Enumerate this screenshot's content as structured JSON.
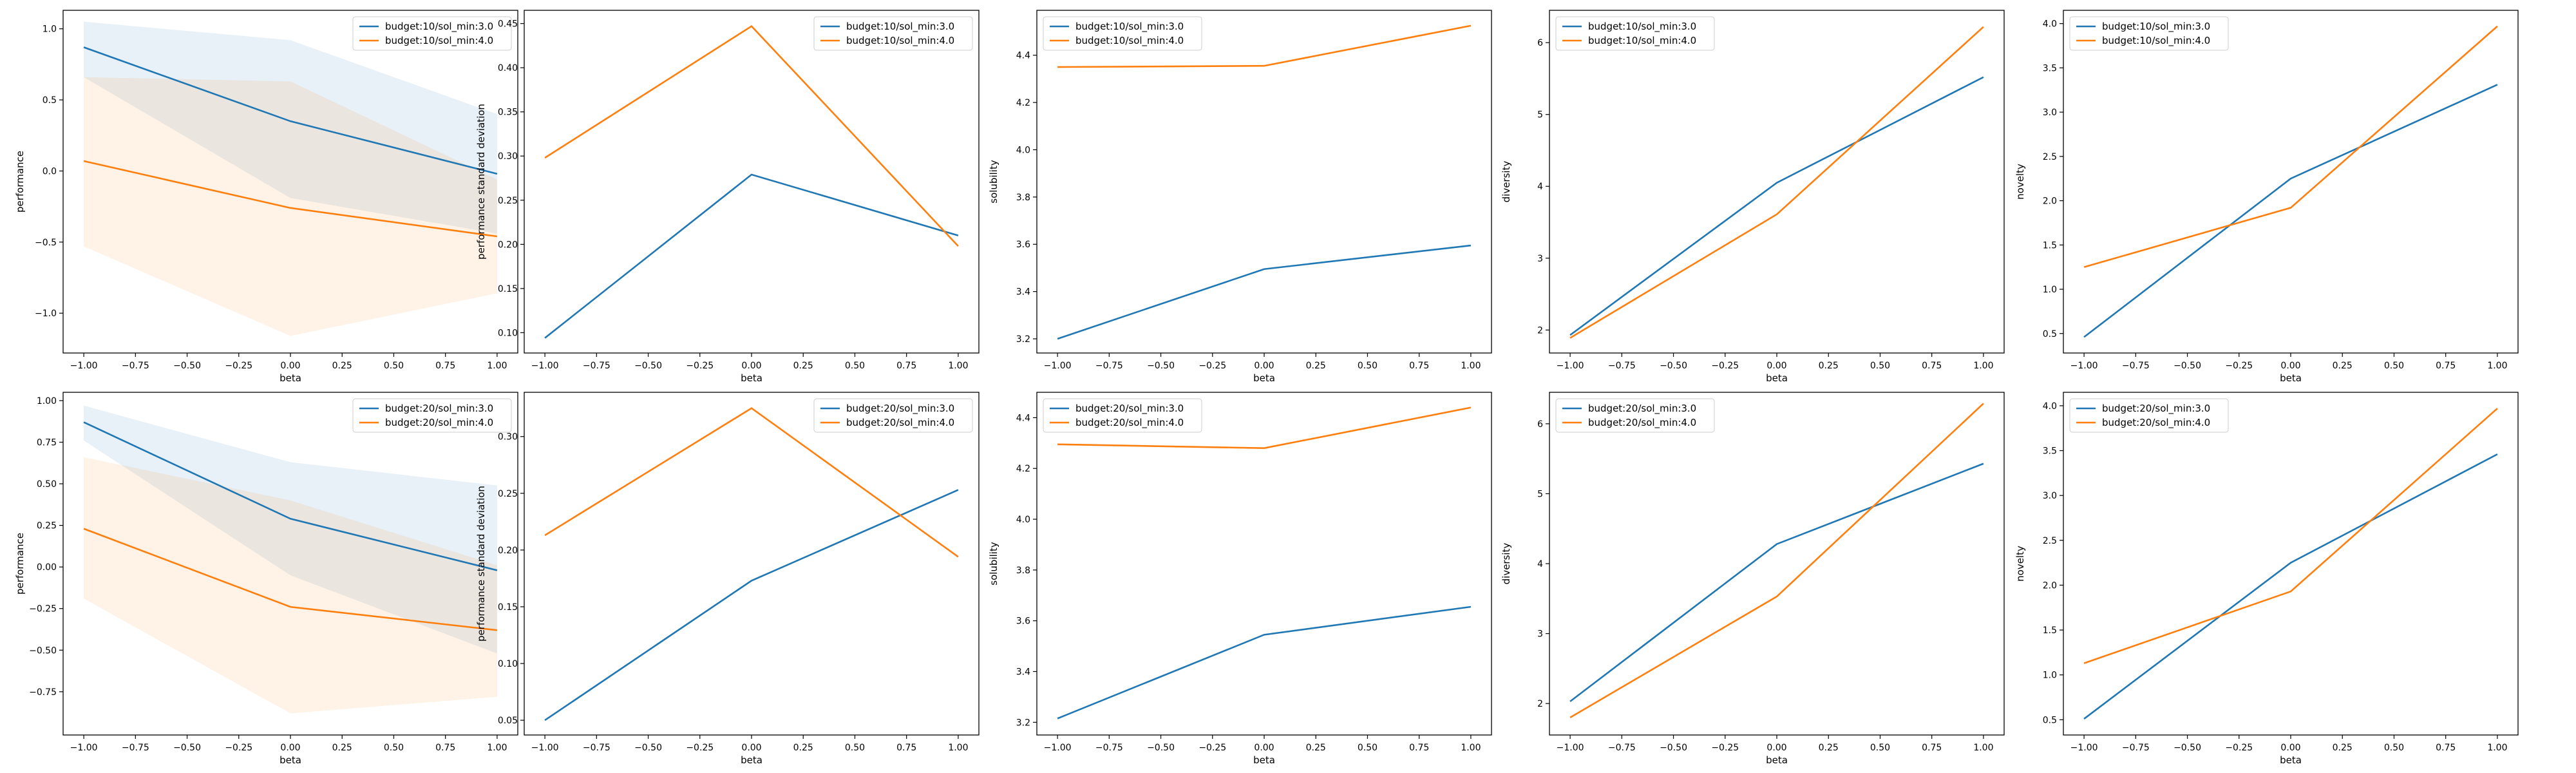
{
  "chart_data": [
    {
      "type": "line",
      "xlabel": "beta",
      "ylabel": "performance",
      "x": [
        -1.0,
        0.0,
        1.0
      ],
      "xticks": [
        "−1.00",
        "−0.75",
        "−0.50",
        "−0.25",
        "0.00",
        "0.25",
        "0.50",
        "0.75",
        "1.00"
      ],
      "xtick_values": [
        -1.0,
        -0.75,
        -0.5,
        -0.25,
        0.0,
        0.25,
        0.5,
        0.75,
        1.0
      ],
      "yticks": [
        "−1.0",
        "−0.5",
        "0.0",
        "0.5",
        "1.0"
      ],
      "ytick_values": [
        -1.0,
        -0.5,
        0.0,
        0.5,
        1.0
      ],
      "ylim": [
        -1.28,
        1.13
      ],
      "legend": "top-right",
      "series": [
        {
          "name": "budget:10/sol_min:3.0",
          "color": "#1f77b4",
          "values": [
            0.87,
            0.35,
            -0.02
          ],
          "band_low": [
            0.66,
            -0.19,
            -0.44
          ],
          "band_high": [
            1.05,
            0.92,
            0.4
          ]
        },
        {
          "name": "budget:10/sol_min:4.0",
          "color": "#ff7f0e",
          "values": [
            0.07,
            -0.26,
            -0.46
          ],
          "band_low": [
            -0.53,
            -1.16,
            -0.86
          ],
          "band_high": [
            0.66,
            0.63,
            -0.06
          ]
        }
      ]
    },
    {
      "type": "line",
      "xlabel": "beta",
      "ylabel": "performance standard deviation",
      "x": [
        -1.0,
        0.0,
        1.0
      ],
      "xticks": [
        "−1.00",
        "−0.75",
        "−0.50",
        "−0.25",
        "0.00",
        "0.25",
        "0.50",
        "0.75",
        "1.00"
      ],
      "xtick_values": [
        -1.0,
        -0.75,
        -0.5,
        -0.25,
        0.0,
        0.25,
        0.5,
        0.75,
        1.0
      ],
      "yticks": [
        "0.10",
        "0.15",
        "0.20",
        "0.25",
        "0.30",
        "0.35",
        "0.40",
        "0.45"
      ],
      "ytick_values": [
        0.1,
        0.15,
        0.2,
        0.25,
        0.3,
        0.35,
        0.4,
        0.45
      ],
      "ylim": [
        0.077,
        0.465
      ],
      "legend": "top-right",
      "series": [
        {
          "name": "budget:10/sol_min:3.0",
          "color": "#1f77b4",
          "values": [
            0.094,
            0.279,
            0.21
          ]
        },
        {
          "name": "budget:10/sol_min:4.0",
          "color": "#ff7f0e",
          "values": [
            0.298,
            0.447,
            0.198
          ]
        }
      ]
    },
    {
      "type": "line",
      "xlabel": "beta",
      "ylabel": "solubility",
      "x": [
        -1.0,
        0.0,
        1.0
      ],
      "xticks": [
        "−1.00",
        "−0.75",
        "−0.50",
        "−0.25",
        "0.00",
        "0.25",
        "0.50",
        "0.75",
        "1.00"
      ],
      "xtick_values": [
        -1.0,
        -0.75,
        -0.5,
        -0.25,
        0.0,
        0.25,
        0.5,
        0.75,
        1.0
      ],
      "yticks": [
        "3.2",
        "3.4",
        "3.6",
        "3.8",
        "4.0",
        "4.2",
        "4.4"
      ],
      "ytick_values": [
        3.2,
        3.4,
        3.6,
        3.8,
        4.0,
        4.2,
        4.4
      ],
      "ylim": [
        3.14,
        4.59
      ],
      "legend": "top-left",
      "series": [
        {
          "name": "budget:10/sol_min:3.0",
          "color": "#1f77b4",
          "values": [
            3.2,
            3.495,
            3.595
          ]
        },
        {
          "name": "budget:10/sol_min:4.0",
          "color": "#ff7f0e",
          "values": [
            4.35,
            4.355,
            4.525
          ]
        }
      ]
    },
    {
      "type": "line",
      "xlabel": "beta",
      "ylabel": "diversity",
      "x": [
        -1.0,
        0.0,
        1.0
      ],
      "xticks": [
        "−1.00",
        "−0.75",
        "−0.50",
        "−0.25",
        "0.00",
        "0.25",
        "0.50",
        "0.75",
        "1.00"
      ],
      "xtick_values": [
        -1.0,
        -0.75,
        -0.5,
        -0.25,
        0.0,
        0.25,
        0.5,
        0.75,
        1.0
      ],
      "yticks": [
        "2",
        "3",
        "4",
        "5",
        "6"
      ],
      "ytick_values": [
        2,
        3,
        4,
        5,
        6
      ],
      "ylim": [
        1.68,
        6.45
      ],
      "legend": "top-left",
      "series": [
        {
          "name": "budget:10/sol_min:3.0",
          "color": "#1f77b4",
          "values": [
            1.93,
            4.05,
            5.52
          ]
        },
        {
          "name": "budget:10/sol_min:4.0",
          "color": "#ff7f0e",
          "values": [
            1.89,
            3.61,
            6.22
          ]
        }
      ]
    },
    {
      "type": "line",
      "xlabel": "beta",
      "ylabel": "novelty",
      "x": [
        -1.0,
        0.0,
        1.0
      ],
      "xticks": [
        "−1.00",
        "−0.75",
        "−0.50",
        "−0.25",
        "0.00",
        "0.25",
        "0.50",
        "0.75",
        "1.00"
      ],
      "xtick_values": [
        -1.0,
        -0.75,
        -0.5,
        -0.25,
        0.0,
        0.25,
        0.5,
        0.75,
        1.0
      ],
      "yticks": [
        "0.5",
        "1.0",
        "1.5",
        "2.0",
        "2.5",
        "3.0",
        "3.5",
        "4.0"
      ],
      "ytick_values": [
        0.5,
        1.0,
        1.5,
        2.0,
        2.5,
        3.0,
        3.5,
        4.0
      ],
      "ylim": [
        0.28,
        4.15
      ],
      "legend": "top-left",
      "series": [
        {
          "name": "budget:10/sol_min:3.0",
          "color": "#1f77b4",
          "values": [
            0.46,
            2.25,
            3.31
          ]
        },
        {
          "name": "budget:10/sol_min:4.0",
          "color": "#ff7f0e",
          "values": [
            1.25,
            1.92,
            3.97
          ]
        }
      ]
    },
    {
      "type": "line",
      "xlabel": "beta",
      "ylabel": "performance",
      "x": [
        -1.0,
        0.0,
        1.0
      ],
      "xticks": [
        "−1.00",
        "−0.75",
        "−0.50",
        "−0.25",
        "0.00",
        "0.25",
        "0.50",
        "0.75",
        "1.00"
      ],
      "xtick_values": [
        -1.0,
        -0.75,
        -0.5,
        -0.25,
        0.0,
        0.25,
        0.5,
        0.75,
        1.0
      ],
      "yticks": [
        "−0.75",
        "−0.50",
        "−0.25",
        "0.00",
        "0.25",
        "0.50",
        "0.75",
        "1.00"
      ],
      "ytick_values": [
        -0.75,
        -0.5,
        -0.25,
        0.0,
        0.25,
        0.5,
        0.75,
        1.0
      ],
      "ylim": [
        -1.01,
        1.05
      ],
      "legend": "top-right",
      "series": [
        {
          "name": "budget:20/sol_min:3.0",
          "color": "#1f77b4",
          "values": [
            0.87,
            0.29,
            -0.02
          ],
          "band_low": [
            0.76,
            -0.05,
            -0.52
          ],
          "band_high": [
            0.97,
            0.63,
            0.49
          ]
        },
        {
          "name": "budget:20/sol_min:4.0",
          "color": "#ff7f0e",
          "values": [
            0.23,
            -0.24,
            -0.38
          ],
          "band_low": [
            -0.19,
            -0.88,
            -0.78
          ],
          "band_high": [
            0.66,
            0.4,
            0.01
          ]
        }
      ]
    },
    {
      "type": "line",
      "xlabel": "beta",
      "ylabel": "performance standard deviation",
      "x": [
        -1.0,
        0.0,
        1.0
      ],
      "xticks": [
        "−1.00",
        "−0.75",
        "−0.50",
        "−0.25",
        "0.00",
        "0.25",
        "0.50",
        "0.75",
        "1.00"
      ],
      "xtick_values": [
        -1.0,
        -0.75,
        -0.5,
        -0.25,
        0.0,
        0.25,
        0.5,
        0.75,
        1.0
      ],
      "yticks": [
        "0.05",
        "0.10",
        "0.15",
        "0.20",
        "0.25",
        "0.30"
      ],
      "ytick_values": [
        0.05,
        0.1,
        0.15,
        0.2,
        0.25,
        0.3
      ],
      "ylim": [
        0.037,
        0.339
      ],
      "legend": "top-right",
      "series": [
        {
          "name": "budget:20/sol_min:3.0",
          "color": "#1f77b4",
          "values": [
            0.05,
            0.173,
            0.253
          ]
        },
        {
          "name": "budget:20/sol_min:4.0",
          "color": "#ff7f0e",
          "values": [
            0.213,
            0.325,
            0.194
          ]
        }
      ]
    },
    {
      "type": "line",
      "xlabel": "beta",
      "ylabel": "solubility",
      "x": [
        -1.0,
        0.0,
        1.0
      ],
      "xticks": [
        "−1.00",
        "−0.75",
        "−0.50",
        "−0.25",
        "0.00",
        "0.25",
        "0.50",
        "0.75",
        "1.00"
      ],
      "xtick_values": [
        -1.0,
        -0.75,
        -0.5,
        -0.25,
        0.0,
        0.25,
        0.5,
        0.75,
        1.0
      ],
      "yticks": [
        "3.2",
        "3.4",
        "3.6",
        "3.8",
        "4.0",
        "4.2",
        "4.4"
      ],
      "ytick_values": [
        3.2,
        3.4,
        3.6,
        3.8,
        4.0,
        4.2,
        4.4
      ],
      "ylim": [
        3.15,
        4.5
      ],
      "legend": "top-left",
      "series": [
        {
          "name": "budget:20/sol_min:3.0",
          "color": "#1f77b4",
          "values": [
            3.215,
            3.545,
            3.655
          ]
        },
        {
          "name": "budget:20/sol_min:4.0",
          "color": "#ff7f0e",
          "values": [
            4.295,
            4.28,
            4.44
          ]
        }
      ]
    },
    {
      "type": "line",
      "xlabel": "beta",
      "ylabel": "diversity",
      "x": [
        -1.0,
        0.0,
        1.0
      ],
      "xticks": [
        "−1.00",
        "−0.75",
        "−0.50",
        "−0.25",
        "0.00",
        "0.25",
        "0.50",
        "0.75",
        "1.00"
      ],
      "xtick_values": [
        -1.0,
        -0.75,
        -0.5,
        -0.25,
        0.0,
        0.25,
        0.5,
        0.75,
        1.0
      ],
      "yticks": [
        "2",
        "3",
        "4",
        "5",
        "6"
      ],
      "ytick_values": [
        2,
        3,
        4,
        5,
        6
      ],
      "ylim": [
        1.55,
        6.45
      ],
      "legend": "top-left",
      "series": [
        {
          "name": "budget:20/sol_min:3.0",
          "color": "#1f77b4",
          "values": [
            2.03,
            4.28,
            5.43
          ]
        },
        {
          "name": "budget:20/sol_min:4.0",
          "color": "#ff7f0e",
          "values": [
            1.8,
            3.53,
            6.29
          ]
        }
      ]
    },
    {
      "type": "line",
      "xlabel": "beta",
      "ylabel": "novelty",
      "x": [
        -1.0,
        0.0,
        1.0
      ],
      "xticks": [
        "−1.00",
        "−0.75",
        "−0.50",
        "−0.25",
        "0.00",
        "0.25",
        "0.50",
        "0.75",
        "1.00"
      ],
      "xtick_values": [
        -1.0,
        -0.75,
        -0.5,
        -0.25,
        0.0,
        0.25,
        0.5,
        0.75,
        1.0
      ],
      "yticks": [
        "0.5",
        "1.0",
        "1.5",
        "2.0",
        "2.5",
        "3.0",
        "3.5",
        "4.0"
      ],
      "ytick_values": [
        0.5,
        1.0,
        1.5,
        2.0,
        2.5,
        3.0,
        3.5,
        4.0
      ],
      "ylim": [
        0.33,
        4.15
      ],
      "legend": "top-left",
      "series": [
        {
          "name": "budget:20/sol_min:3.0",
          "color": "#1f77b4",
          "values": [
            0.51,
            2.25,
            3.46
          ]
        },
        {
          "name": "budget:20/sol_min:4.0",
          "color": "#ff7f0e",
          "values": [
            1.13,
            1.93,
            3.97
          ]
        }
      ]
    }
  ]
}
